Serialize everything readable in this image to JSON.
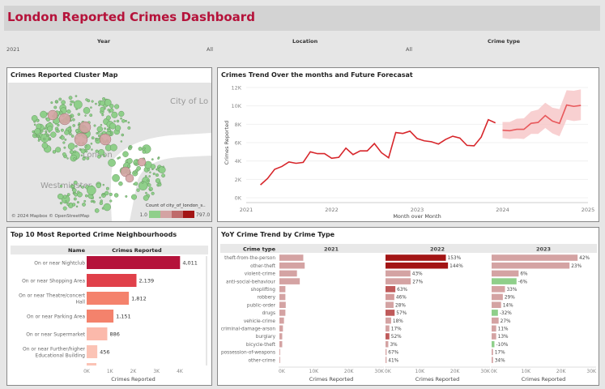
{
  "title": "London Reported Crimes Dashboard",
  "filters": [
    {
      "label": "Year",
      "value": "2021"
    },
    {
      "label": "Location",
      "value": "All"
    },
    {
      "label": "Crime type",
      "value": "All"
    }
  ],
  "map": {
    "title": "Crimes Reported Cluster Map",
    "place_labels": [
      "City of Lo",
      "London",
      "Westminster"
    ],
    "attribution": "© 2024 Mapbox © OpenStreetMap",
    "legend_title": "Count of city_of_london_s..",
    "legend_min": "1.0",
    "legend_max": "797.0",
    "legend_colors": [
      "#8fcf8a",
      "#d4a3a3",
      "#bf6a6a",
      "#a31515"
    ]
  },
  "trend": {
    "title": "Crimes Trend Over the months and Future Forecasat",
    "chart_data": {
      "type": "line",
      "xlabel": "Month over Month",
      "ylabel": "Crimes Reported",
      "ylim": [
        0,
        12000
      ],
      "yticks": [
        "0K",
        "2K",
        "4K",
        "6K",
        "8K",
        "10K",
        "12K"
      ],
      "xticks": [
        "2021",
        "2022",
        "2023",
        "2024",
        "2025"
      ],
      "actual": {
        "start": "2021-03",
        "values": [
          1400,
          2100,
          3100,
          3400,
          3900,
          3750,
          3850,
          5000,
          4800,
          4800,
          4300,
          4400,
          5400,
          4700,
          5100,
          5100,
          5900,
          4900,
          4350,
          7100,
          7000,
          7250,
          6450,
          6200,
          6100,
          5850,
          6350,
          6700,
          6500,
          5700,
          5650,
          6600,
          8500,
          8150
        ],
        "color": "#d7262b"
      },
      "forecast": {
        "start": "2024-01",
        "values": [
          7350,
          7300,
          7450,
          7450,
          8100,
          8200,
          8950,
          8350,
          8100,
          10100,
          9950,
          10050
        ],
        "lower": [
          6500,
          6400,
          6450,
          6400,
          6950,
          6950,
          7600,
          7000,
          6700,
          8500,
          8350,
          8450
        ],
        "upper": [
          8250,
          8250,
          8600,
          8650,
          9400,
          9600,
          10350,
          9800,
          9650,
          11700,
          11650,
          11800
        ],
        "color": "#e8595c",
        "band_color": "#f6c4c5"
      }
    }
  },
  "top10": {
    "title": "Top 10 Most Reported Crime Neighbourhoods",
    "col_name": "Name",
    "col_value": "Crimes Reported",
    "chart_data": {
      "type": "bar",
      "orientation": "horizontal",
      "xlabel": "Crimes Reported",
      "xlim": [
        0,
        4000
      ],
      "xticks": [
        "0K",
        "1K",
        "2K",
        "3K",
        "4K"
      ],
      "categories": [
        "On or near Nightclub",
        "On or near Shopping Area",
        "On or near Theatre/concert Hall",
        "On or near Parking Area",
        "On or near Supermarket",
        "On or near Further/higher Educational Building"
      ],
      "values": [
        4011,
        2139,
        1812,
        1151,
        886,
        456
      ],
      "labels": [
        "4,011",
        "2,139",
        "1,812",
        "1,151",
        "886",
        "456"
      ],
      "colors": [
        "#b5123a",
        "#e0404a",
        "#f4826c",
        "#f4826c",
        "#fbb9ab",
        "#fbc3b5"
      ]
    }
  },
  "yoy": {
    "title": "YoY Crime Trend by Crime Type",
    "col_type": "Crime type",
    "chart_data": {
      "type": "bar",
      "orientation": "horizontal",
      "xlabel": "Crimes Reported",
      "xlim": [
        0,
        30000
      ],
      "xticks": [
        "0K",
        "10K",
        "20K",
        "30K"
      ],
      "categories": [
        "theft-from-the-person",
        "other-theft",
        "violent-crime",
        "anti-social-behaviour",
        "shoplifting",
        "robbery",
        "public-order",
        "drugs",
        "vehicle-crime",
        "criminal-damage-arson",
        "burglary",
        "bicycle-theft",
        "possession-of-weapons",
        "other-crime"
      ],
      "series": [
        {
          "name": "2021",
          "values": [
            6800,
            7200,
            5000,
            5800,
            1700,
            1700,
            1800,
            1700,
            1300,
            1000,
            800,
            800,
            200,
            200
          ],
          "labels": [],
          "colors": []
        },
        {
          "name": "2022",
          "values": [
            17200,
            17800,
            7100,
            7200,
            2800,
            2500,
            2300,
            2600,
            1600,
            1100,
            1100,
            800,
            300,
            300
          ],
          "labels": [
            "153%",
            "144%",
            "43%",
            "27%",
            "63%",
            "46%",
            "28%",
            "57%",
            "18%",
            "17%",
            "52%",
            "3%",
            "67%",
            "41%"
          ],
          "colors": [
            "#a31515",
            "#a31515",
            "#d4a3a3",
            "#d4a3a3",
            "#bf5a5a",
            "#d49a9a",
            "#d4a3a3",
            "#bf5a5a",
            "#d4a3a3",
            "#d4a3a3",
            "#bf5a5a",
            "#d4a3a3",
            "#d4a3a3",
            "#d4a3a3"
          ]
        },
        {
          "name": "2023",
          "values": [
            24500,
            22200,
            7700,
            7100,
            3800,
            3200,
            2700,
            1800,
            2000,
            1300,
            1300,
            800,
            400,
            400
          ],
          "labels": [
            "42%",
            "23%",
            "6%",
            "-6%",
            "33%",
            "29%",
            "14%",
            "-32%",
            "27%",
            "11%",
            "13%",
            "-10%",
            "17%",
            "34%"
          ],
          "colors": [
            "#d4a3a3",
            "#d4a3a3",
            "#d4a3a3",
            "#8fcf8a",
            "#d4a3a3",
            "#d4a3a3",
            "#d4a3a3",
            "#8fcf8a",
            "#d4a3a3",
            "#d4a3a3",
            "#d4a3a3",
            "#8fcf8a",
            "#d4a3a3",
            "#d4a3a3"
          ]
        }
      ],
      "base_color": "#d4a3a3"
    }
  }
}
